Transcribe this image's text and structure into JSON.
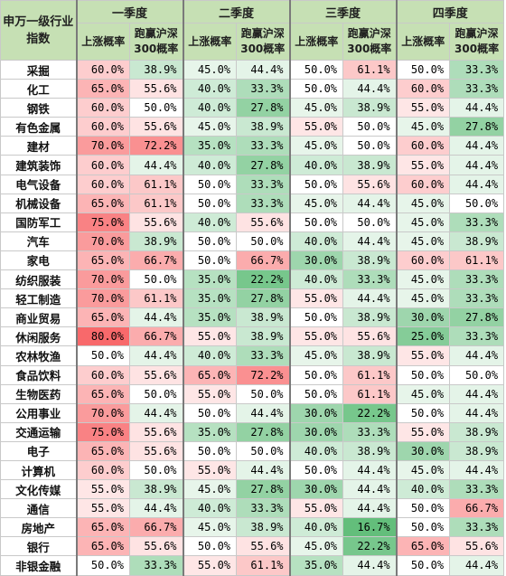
{
  "header": {
    "corner_label": "申万一级行业指数",
    "quarters": [
      "一季度",
      "二季度",
      "三季度",
      "四季度"
    ],
    "sub_up": "上涨概率",
    "sub_beat": "跑赢沪深300概率"
  },
  "colors": {
    "max_red": "#f8696b",
    "mid_white": "#ffffff",
    "max_green": "#63be7b",
    "header_bg": "#c6e0b4"
  },
  "rows": [
    {
      "name": "采掘",
      "values": [
        "60.0%",
        "38.9%",
        "45.0%",
        "44.4%",
        "50.0%",
        "61.1%",
        "50.0%",
        "33.3%"
      ]
    },
    {
      "name": "化工",
      "values": [
        "65.0%",
        "55.6%",
        "40.0%",
        "33.3%",
        "50.0%",
        "44.4%",
        "60.0%",
        "33.3%"
      ]
    },
    {
      "name": "钢铁",
      "values": [
        "60.0%",
        "50.0%",
        "40.0%",
        "27.8%",
        "45.0%",
        "38.9%",
        "55.0%",
        "44.4%"
      ]
    },
    {
      "name": "有色金属",
      "values": [
        "60.0%",
        "55.6%",
        "45.0%",
        "38.9%",
        "55.0%",
        "50.0%",
        "45.0%",
        "27.8%"
      ]
    },
    {
      "name": "建材",
      "values": [
        "70.0%",
        "72.2%",
        "35.0%",
        "33.3%",
        "45.0%",
        "50.0%",
        "60.0%",
        "44.4%"
      ]
    },
    {
      "name": "建筑装饰",
      "values": [
        "60.0%",
        "44.4%",
        "40.0%",
        "27.8%",
        "40.0%",
        "38.9%",
        "55.0%",
        "44.4%"
      ]
    },
    {
      "name": "电气设备",
      "values": [
        "60.0%",
        "61.1%",
        "50.0%",
        "33.3%",
        "50.0%",
        "55.6%",
        "60.0%",
        "44.4%"
      ]
    },
    {
      "name": "机械设备",
      "values": [
        "65.0%",
        "61.1%",
        "50.0%",
        "33.3%",
        "45.0%",
        "44.4%",
        "45.0%",
        "50.0%"
      ]
    },
    {
      "name": "国防军工",
      "values": [
        "75.0%",
        "55.6%",
        "40.0%",
        "55.6%",
        "50.0%",
        "50.0%",
        "45.0%",
        "33.3%"
      ]
    },
    {
      "name": "汽车",
      "values": [
        "70.0%",
        "38.9%",
        "50.0%",
        "50.0%",
        "40.0%",
        "44.4%",
        "45.0%",
        "38.9%"
      ]
    },
    {
      "name": "家电",
      "values": [
        "65.0%",
        "66.7%",
        "50.0%",
        "66.7%",
        "30.0%",
        "38.9%",
        "60.0%",
        "61.1%"
      ]
    },
    {
      "name": "纺织服装",
      "values": [
        "70.0%",
        "50.0%",
        "35.0%",
        "22.2%",
        "40.0%",
        "33.3%",
        "45.0%",
        "33.3%"
      ]
    },
    {
      "name": "轻工制造",
      "values": [
        "70.0%",
        "61.1%",
        "35.0%",
        "27.8%",
        "55.0%",
        "44.4%",
        "45.0%",
        "33.3%"
      ]
    },
    {
      "name": "商业贸易",
      "values": [
        "65.0%",
        "44.4%",
        "35.0%",
        "38.9%",
        "50.0%",
        "38.9%",
        "30.0%",
        "27.8%"
      ]
    },
    {
      "name": "休闲服务",
      "values": [
        "80.0%",
        "66.7%",
        "55.0%",
        "38.9%",
        "55.0%",
        "55.6%",
        "25.0%",
        "33.3%"
      ]
    },
    {
      "name": "农林牧渔",
      "values": [
        "50.0%",
        "44.4%",
        "40.0%",
        "33.3%",
        "45.0%",
        "38.9%",
        "55.0%",
        "44.4%"
      ]
    },
    {
      "name": "食品饮料",
      "values": [
        "60.0%",
        "55.6%",
        "65.0%",
        "72.2%",
        "50.0%",
        "61.1%",
        "50.0%",
        "50.0%"
      ]
    },
    {
      "name": "生物医药",
      "values": [
        "65.0%",
        "50.0%",
        "55.0%",
        "50.0%",
        "50.0%",
        "61.1%",
        "45.0%",
        "44.4%"
      ]
    },
    {
      "name": "公用事业",
      "values": [
        "70.0%",
        "44.4%",
        "50.0%",
        "44.4%",
        "30.0%",
        "22.2%",
        "50.0%",
        "44.4%"
      ]
    },
    {
      "name": "交通运输",
      "values": [
        "75.0%",
        "55.6%",
        "35.0%",
        "27.8%",
        "30.0%",
        "33.3%",
        "55.0%",
        "38.9%"
      ]
    },
    {
      "name": "电子",
      "values": [
        "65.0%",
        "55.6%",
        "50.0%",
        "50.0%",
        "40.0%",
        "38.9%",
        "30.0%",
        "38.9%"
      ]
    },
    {
      "name": "计算机",
      "values": [
        "60.0%",
        "50.0%",
        "55.0%",
        "44.4%",
        "50.0%",
        "44.4%",
        "45.0%",
        "44.4%"
      ]
    },
    {
      "name": "文化传媒",
      "values": [
        "55.0%",
        "38.9%",
        "45.0%",
        "27.8%",
        "30.0%",
        "44.4%",
        "40.0%",
        "33.3%"
      ]
    },
    {
      "name": "通信",
      "values": [
        "55.0%",
        "44.4%",
        "40.0%",
        "33.3%",
        "55.0%",
        "44.4%",
        "50.0%",
        "66.7%"
      ]
    },
    {
      "name": "房地产",
      "values": [
        "65.0%",
        "66.7%",
        "45.0%",
        "38.9%",
        "40.0%",
        "16.7%",
        "50.0%",
        "33.3%"
      ]
    },
    {
      "name": "银行",
      "values": [
        "65.0%",
        "55.6%",
        "50.0%",
        "55.6%",
        "45.0%",
        "22.2%",
        "65.0%",
        "55.6%"
      ]
    },
    {
      "name": "非银金融",
      "values": [
        "50.0%",
        "33.3%",
        "55.0%",
        "61.1%",
        "35.0%",
        "44.4%",
        "50.0%",
        "44.4%"
      ]
    }
  ]
}
